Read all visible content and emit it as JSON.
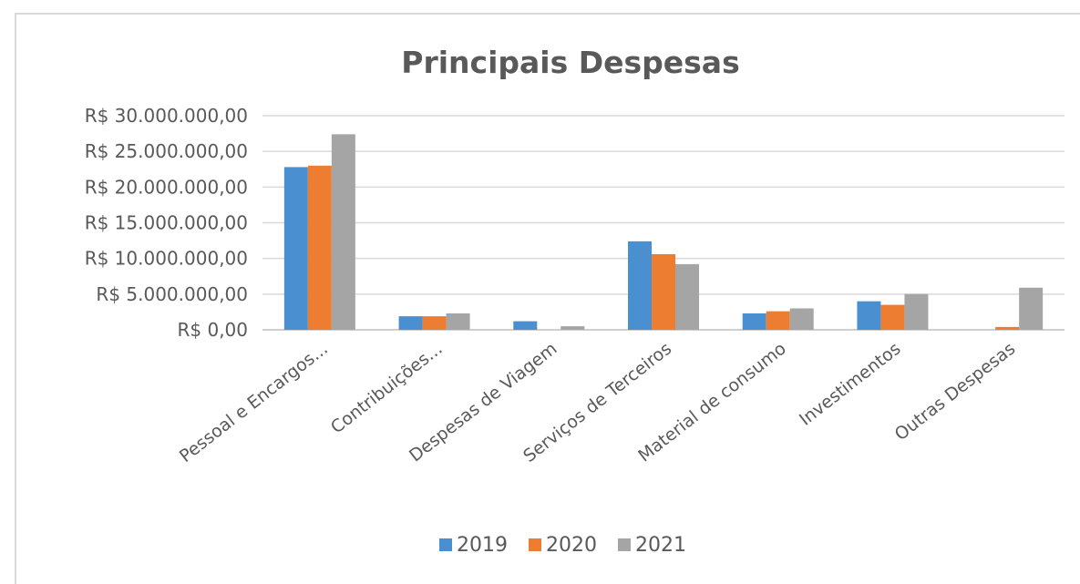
{
  "chart_data": {
    "type": "bar",
    "title": "Principais Despesas",
    "categories": [
      "Pessoal e Encargos...",
      "Contribuições...",
      "Despesas de Viagem",
      "Serviços de Terceiros",
      "Material de consumo",
      "Investimentos",
      "Outras Despesas"
    ],
    "series": [
      {
        "name": "2019",
        "color": "#4a8fd0",
        "values": [
          22800000,
          1900000,
          1200000,
          12400000,
          2300000,
          4000000,
          0
        ]
      },
      {
        "name": "2020",
        "color": "#ed7d31",
        "values": [
          23000000,
          1900000,
          0,
          10600000,
          2600000,
          3500000,
          400000
        ]
      },
      {
        "name": "2021",
        "color": "#a5a5a5",
        "values": [
          27400000,
          2300000,
          500000,
          9200000,
          3000000,
          5000000,
          5900000
        ]
      }
    ],
    "yticks": [
      "R$ 0,00",
      "R$ 5.000.000,00",
      "R$ 10.000.000,00",
      "R$ 15.000.000,00",
      "R$ 20.000.000,00",
      "R$ 25.000.000,00",
      "R$ 30.000.000,00"
    ],
    "ylim": [
      0,
      30000000
    ],
    "grid": true,
    "legend_position": "bottom"
  }
}
